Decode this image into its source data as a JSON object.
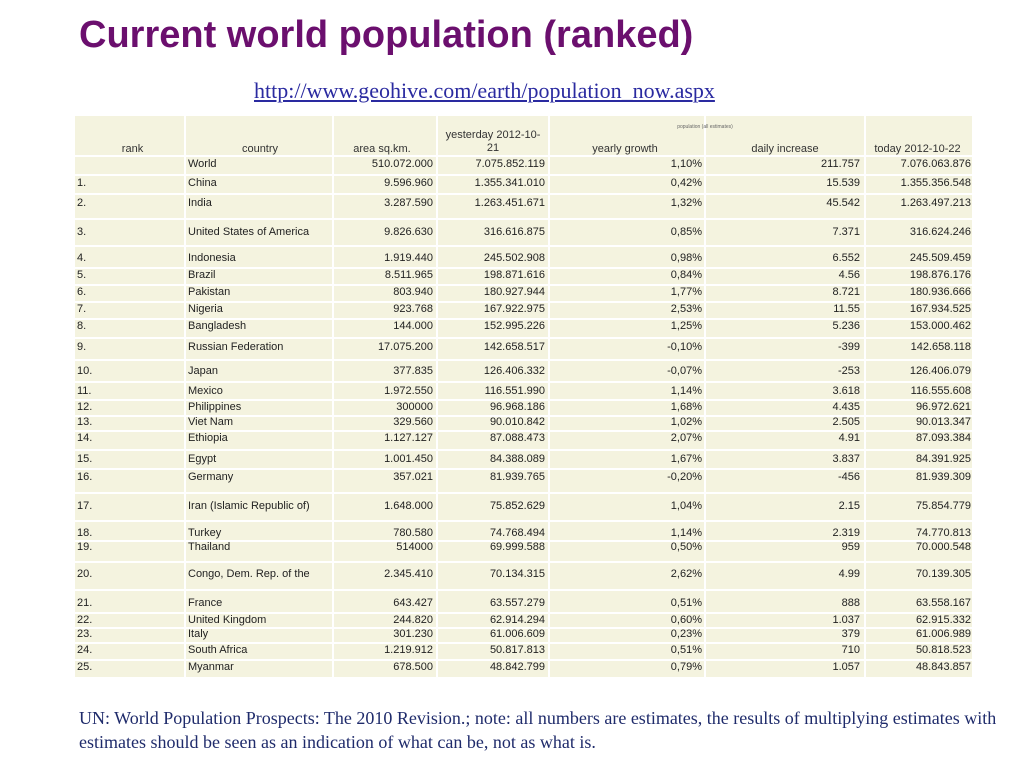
{
  "title": "Current world population (ranked)",
  "url": "http://www.geohive.com/earth/population_now.aspx",
  "table": {
    "caption": "population  (all estimates)",
    "headers": {
      "rank": "rank",
      "country": "country",
      "area": "area sq.km.",
      "yesterday_l1": "yesterday 2012-10-",
      "yesterday_l2": "21",
      "growth": "yearly growth",
      "increase": "daily increase",
      "today": "today 2012-10-22"
    },
    "rows": [
      {
        "rank": "",
        "country": "World",
        "area": "510.072.000",
        "yesterday": "7.075.852.119",
        "growth": "1,10%",
        "increase": "211.757",
        "today": "7.076.063.876"
      },
      {
        "rank": "1.",
        "country": "China",
        "area": "9.596.960",
        "yesterday": "1.355.341.010",
        "growth": "0,42%",
        "increase": "15.539",
        "today": "1.355.356.548"
      },
      {
        "rank": "2.",
        "country": "India",
        "area": "3.287.590",
        "yesterday": "1.263.451.671",
        "growth": "1,32%",
        "increase": "45.542",
        "today": "1.263.497.213"
      },
      {
        "rank": "3.",
        "country": "United States of America",
        "area": "9.826.630",
        "yesterday": "316.616.875",
        "growth": "0,85%",
        "increase": "7.371",
        "today": "316.624.246"
      },
      {
        "rank": "4.",
        "country": "Indonesia",
        "area": "1.919.440",
        "yesterday": "245.502.908",
        "growth": "0,98%",
        "increase": "6.552",
        "today": "245.509.459"
      },
      {
        "rank": "5.",
        "country": "Brazil",
        "area": "8.511.965",
        "yesterday": "198.871.616",
        "growth": "0,84%",
        "increase": "4.56",
        "today": "198.876.176"
      },
      {
        "rank": "6.",
        "country": "Pakistan",
        "area": "803.940",
        "yesterday": "180.927.944",
        "growth": "1,77%",
        "increase": "8.721",
        "today": "180.936.666"
      },
      {
        "rank": "7.",
        "country": "Nigeria",
        "area": "923.768",
        "yesterday": "167.922.975",
        "growth": "2,53%",
        "increase": "11.55",
        "today": "167.934.525"
      },
      {
        "rank": "8.",
        "country": "Bangladesh",
        "area": "144.000",
        "yesterday": "152.995.226",
        "growth": "1,25%",
        "increase": "5.236",
        "today": "153.000.462"
      },
      {
        "rank": "9.",
        "country": "Russian Federation",
        "area": "17.075.200",
        "yesterday": "142.658.517",
        "growth": "-0,10%",
        "increase": "-399",
        "today": "142.658.118"
      },
      {
        "rank": "10.",
        "country": "Japan",
        "area": "377.835",
        "yesterday": "126.406.332",
        "growth": "-0,07%",
        "increase": "-253",
        "today": "126.406.079"
      },
      {
        "rank": "11.",
        "country": "Mexico",
        "area": "1.972.550",
        "yesterday": "116.551.990",
        "growth": "1,14%",
        "increase": "3.618",
        "today": "116.555.608"
      },
      {
        "rank": "12.",
        "country": "Philippines",
        "area": "300000",
        "yesterday": "96.968.186",
        "growth": "1,68%",
        "increase": "4.435",
        "today": "96.972.621"
      },
      {
        "rank": "13.",
        "country": "Viet Nam",
        "area": "329.560",
        "yesterday": "90.010.842",
        "growth": "1,02%",
        "increase": "2.505",
        "today": "90.013.347"
      },
      {
        "rank": "14.",
        "country": "Ethiopia",
        "area": "1.127.127",
        "yesterday": "87.088.473",
        "growth": "2,07%",
        "increase": "4.91",
        "today": "87.093.384"
      },
      {
        "rank": "15.",
        "country": "Egypt",
        "area": "1.001.450",
        "yesterday": "84.388.089",
        "growth": "1,67%",
        "increase": "3.837",
        "today": "84.391.925"
      },
      {
        "rank": "16.",
        "country": "Germany",
        "area": "357.021",
        "yesterday": "81.939.765",
        "growth": "-0,20%",
        "increase": "-456",
        "today": "81.939.309"
      },
      {
        "rank": "17.",
        "country": "Iran (Islamic Republic of)",
        "area": "1.648.000",
        "yesterday": "75.852.629",
        "growth": "1,04%",
        "increase": "2.15",
        "today": "75.854.779"
      },
      {
        "rank": "18.",
        "country": "Turkey",
        "area": "780.580",
        "yesterday": "74.768.494",
        "growth": "1,14%",
        "increase": "2.319",
        "today": "74.770.813"
      },
      {
        "rank": "19.",
        "country": "Thailand",
        "area": "514000",
        "yesterday": "69.999.588",
        "growth": "0,50%",
        "increase": "959",
        "today": "70.000.548"
      },
      {
        "rank": "20.",
        "country": "Congo, Dem. Rep. of the",
        "area": "2.345.410",
        "yesterday": "70.134.315",
        "growth": "2,62%",
        "increase": "4.99",
        "today": "70.139.305"
      },
      {
        "rank": "21.",
        "country": "France",
        "area": "643.427",
        "yesterday": "63.557.279",
        "growth": "0,51%",
        "increase": "888",
        "today": "63.558.167"
      },
      {
        "rank": "22.",
        "country": "United Kingdom",
        "area": "244.820",
        "yesterday": "62.914.294",
        "growth": "0,60%",
        "increase": "1.037",
        "today": "62.915.332"
      },
      {
        "rank": "23.",
        "country": "Italy",
        "area": "301.230",
        "yesterday": "61.006.609",
        "growth": "0,23%",
        "increase": "379",
        "today": "61.006.989"
      },
      {
        "rank": "24.",
        "country": "South Africa",
        "area": "1.219.912",
        "yesterday": "50.817.813",
        "growth": "0,51%",
        "increase": "710",
        "today": "50.818.523"
      },
      {
        "rank": "25.",
        "country": "Myanmar",
        "area": "678.500",
        "yesterday": "48.842.799",
        "growth": "0,79%",
        "increase": "1.057",
        "today": "48.843.857"
      }
    ]
  },
  "footer": "UN: World Population Prospects: The 2010 Revision.;  note: all numbers are estimates, the results of multiplying estimates with estimates should be seen as an indication of what can be, not as what is.",
  "colors": {
    "title": "#6b0f6e",
    "link": "#2a2aa0",
    "table_bg": "#f4f3df",
    "footer": "#1f2b6b"
  }
}
